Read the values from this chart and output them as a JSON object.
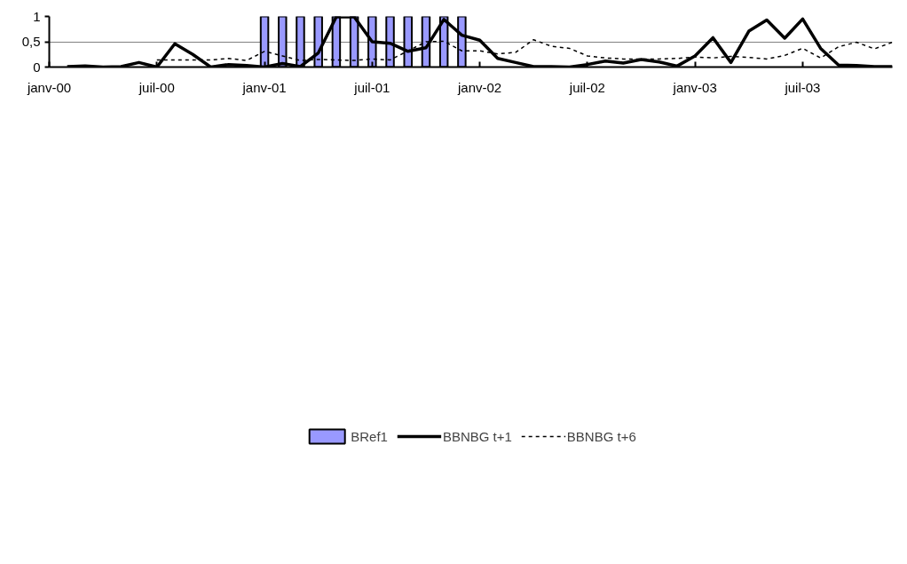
{
  "chart_data": {
    "type": "line",
    "x": [
      "2000-02",
      "2000-03",
      "2000-04",
      "2000-05",
      "2000-06",
      "2000-07",
      "2000-08",
      "2000-09",
      "2000-10",
      "2000-11",
      "2000-12",
      "2001-01",
      "2001-02",
      "2001-03",
      "2001-04",
      "2001-05",
      "2001-06",
      "2001-07",
      "2001-08",
      "2001-09",
      "2001-10",
      "2001-11",
      "2001-12",
      "2002-01",
      "2002-02",
      "2002-03",
      "2002-04",
      "2002-05",
      "2002-06",
      "2002-07",
      "2002-08",
      "2002-09",
      "2002-10",
      "2002-11",
      "2002-12",
      "2003-01",
      "2003-02",
      "2003-03",
      "2003-04",
      "2003-05",
      "2003-06",
      "2003-07",
      "2003-08",
      "2003-09",
      "2003-10",
      "2003-11",
      "2003-12"
    ],
    "series": [
      {
        "name": "BRef1",
        "type": "bar",
        "color": "#9999ff",
        "values": [
          null,
          null,
          null,
          null,
          null,
          null,
          null,
          null,
          null,
          null,
          null,
          1,
          1,
          1,
          1,
          1,
          1,
          1,
          1,
          1,
          1,
          1,
          1,
          null,
          null,
          null,
          null,
          null,
          null,
          null,
          null,
          null,
          null,
          null,
          null,
          null,
          null,
          null,
          null,
          null,
          null,
          null,
          null,
          null,
          null,
          null,
          null
        ]
      },
      {
        "name": "BBNBG t+1",
        "line_style": "solid",
        "color": "#000000",
        "values": [
          0.01,
          0.02,
          0,
          0.01,
          0.09,
          0,
          0.46,
          0.25,
          0,
          0.05,
          0.03,
          0,
          0.07,
          0.01,
          0.28,
          0.99,
          0.99,
          0.5,
          0.47,
          0.31,
          0.38,
          0.94,
          0.63,
          0.53,
          0.17,
          0.09,
          0.01,
          0.01,
          0,
          0.05,
          0.12,
          0.08,
          0.15,
          0.1,
          0.02,
          0.22,
          0.58,
          0.09,
          0.71,
          0.93,
          0.57,
          0.95,
          0.37,
          0.04,
          0.03,
          0.01,
          0.01
        ]
      },
      {
        "name": "BBNBG t+6",
        "line_style": "dashed",
        "color": "#000000",
        "values": [
          null,
          null,
          null,
          null,
          null,
          0.14,
          0.14,
          0.14,
          0.14,
          0.17,
          0.13,
          0.31,
          0.22,
          0.13,
          0.15,
          0.14,
          0.13,
          0.16,
          0.14,
          0.32,
          0.5,
          0.51,
          0.32,
          0.32,
          0.26,
          0.29,
          0.54,
          0.41,
          0.37,
          0.22,
          0.18,
          0.16,
          0.16,
          0.16,
          0.17,
          0.2,
          0.18,
          0.21,
          0.19,
          0.16,
          0.23,
          0.37,
          0.18,
          0.4,
          0.49,
          0.36,
          0.49
        ]
      }
    ],
    "xlim": [
      "2000-01",
      "2003-12"
    ],
    "xticks": [
      {
        "value": "2000-01",
        "label": "janv-00"
      },
      {
        "value": "2000-07",
        "label": "juil-00"
      },
      {
        "value": "2001-01",
        "label": "janv-01"
      },
      {
        "value": "2001-07",
        "label": "juil-01"
      },
      {
        "value": "2002-01",
        "label": "janv-02"
      },
      {
        "value": "2002-07",
        "label": "juil-02"
      },
      {
        "value": "2003-01",
        "label": "janv-03"
      },
      {
        "value": "2003-07",
        "label": "juil-03"
      }
    ],
    "ylim": [
      0,
      1
    ],
    "yticks": [
      0,
      {
        "value": 0.5,
        "label": "0,5"
      },
      1
    ],
    "grid": "y",
    "legend": "bottom"
  }
}
